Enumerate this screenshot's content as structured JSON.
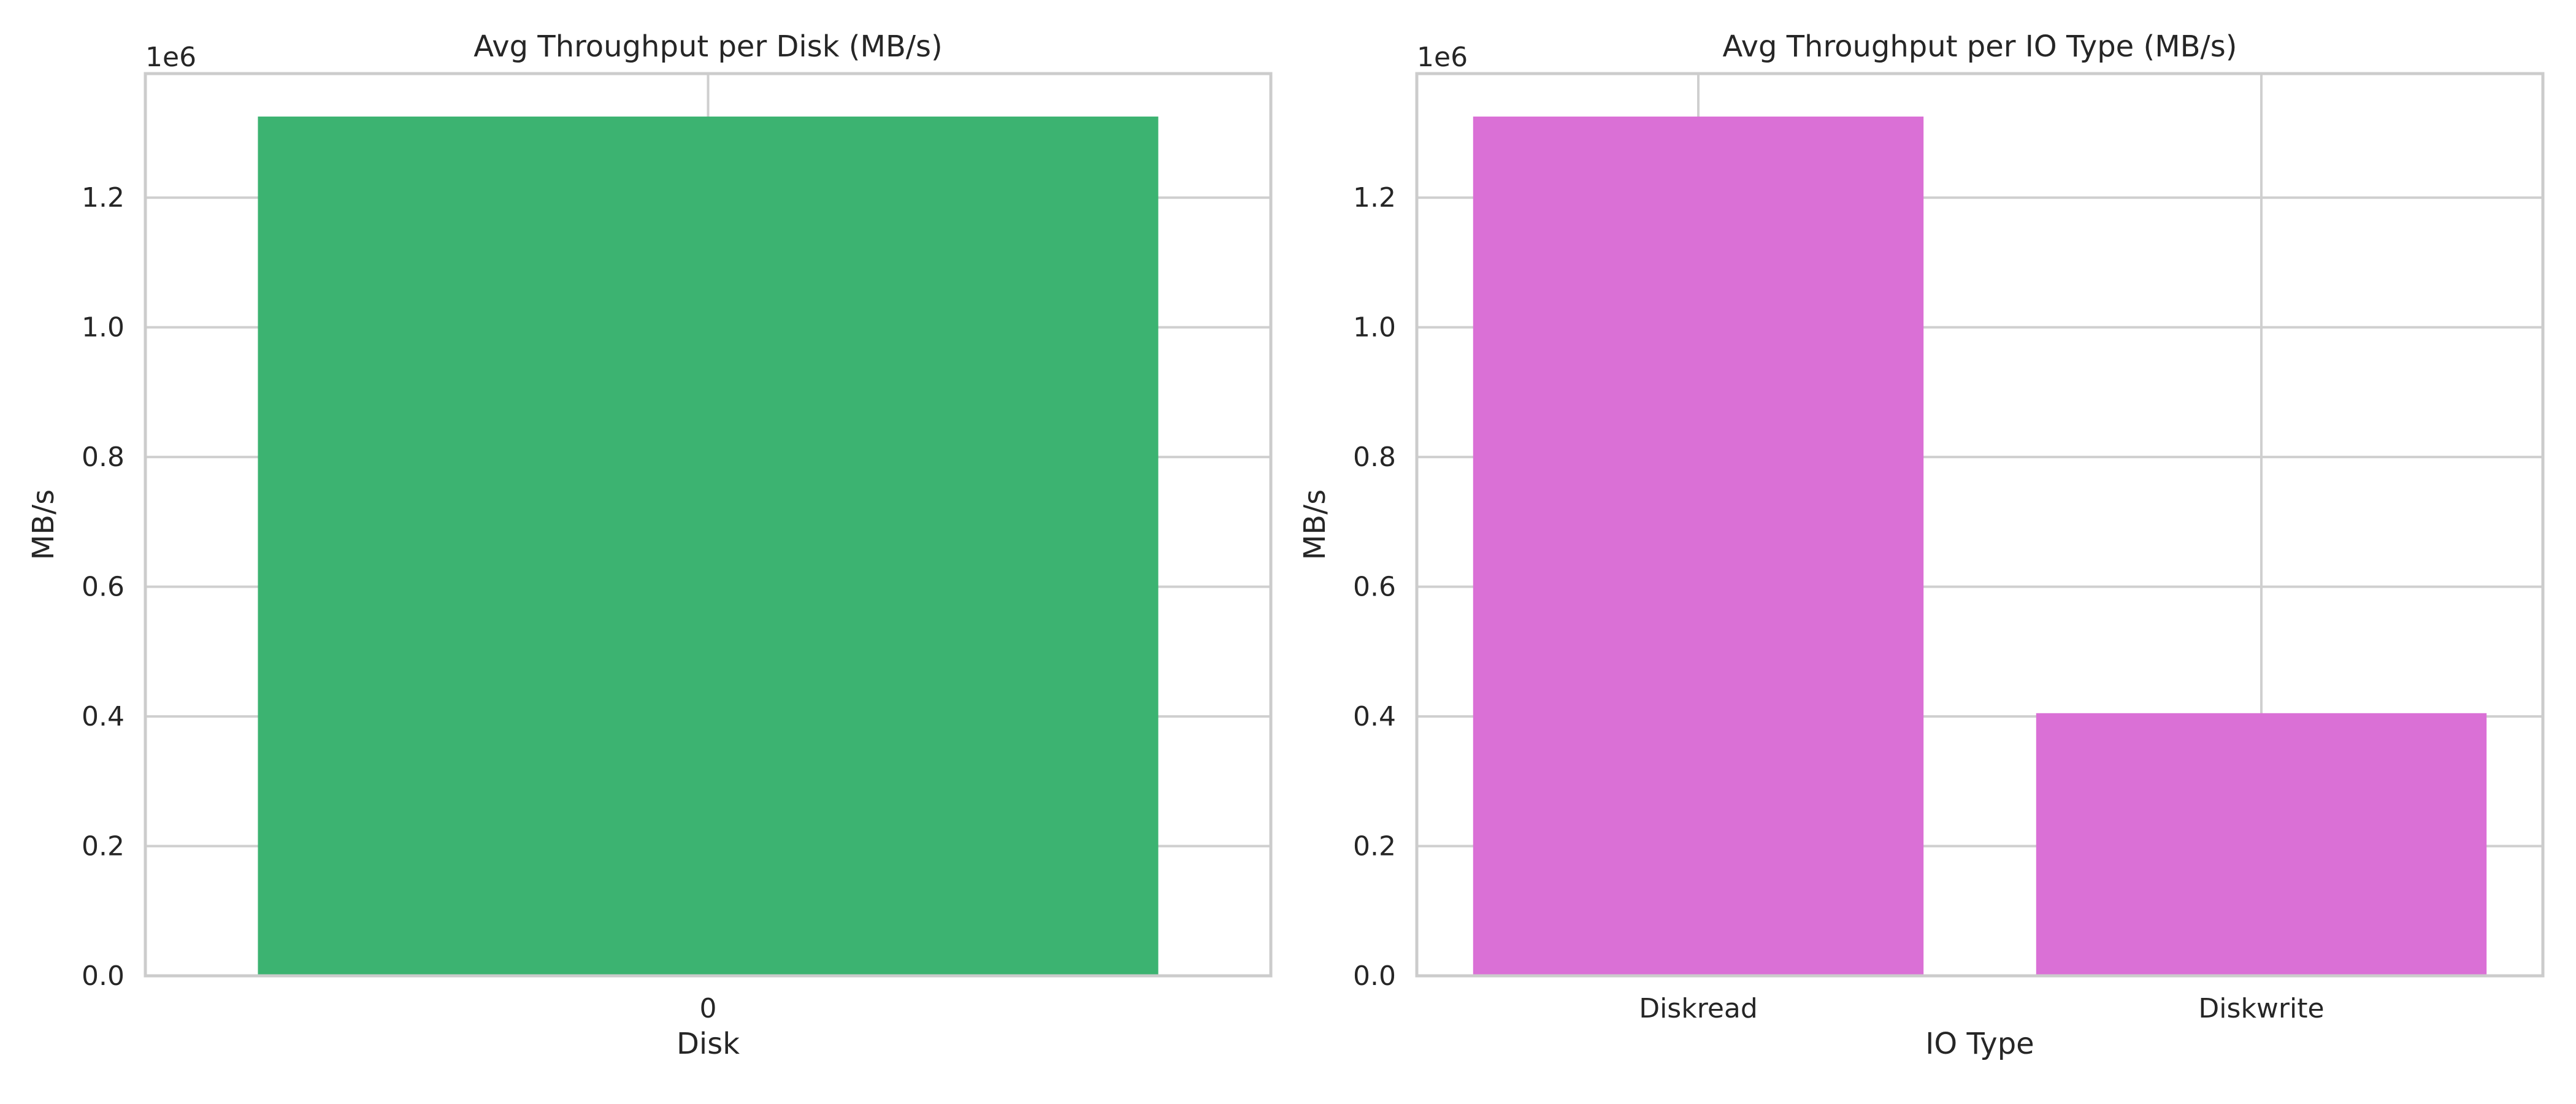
{
  "chart_data": [
    {
      "type": "bar",
      "title": "Avg Throughput per Disk (MB/s)",
      "xlabel": "Disk",
      "ylabel": "MB/s",
      "categories": [
        "0"
      ],
      "values": [
        1325000
      ],
      "ylim": [
        0,
        1391250
      ],
      "yticks": [
        0,
        200000,
        400000,
        600000,
        800000,
        1000000,
        1200000
      ],
      "ytick_labels": [
        "0.0",
        "0.2",
        "0.4",
        "0.6",
        "0.8",
        "1.0",
        "1.2"
      ],
      "offset_text": "1e6",
      "bar_color": "#3cb371",
      "grid": true
    },
    {
      "type": "bar",
      "title": "Avg Throughput per IO Type (MB/s)",
      "xlabel": "IO Type",
      "ylabel": "MB/s",
      "categories": [
        "Diskread",
        "Diskwrite"
      ],
      "values": [
        1325000,
        405000
      ],
      "ylim": [
        0,
        1391250
      ],
      "yticks": [
        0,
        200000,
        400000,
        600000,
        800000,
        1000000,
        1200000
      ],
      "ytick_labels": [
        "0.0",
        "0.2",
        "0.4",
        "0.6",
        "0.8",
        "1.0",
        "1.2"
      ],
      "offset_text": "1e6",
      "bar_color": "#da70d6",
      "grid": true
    }
  ]
}
